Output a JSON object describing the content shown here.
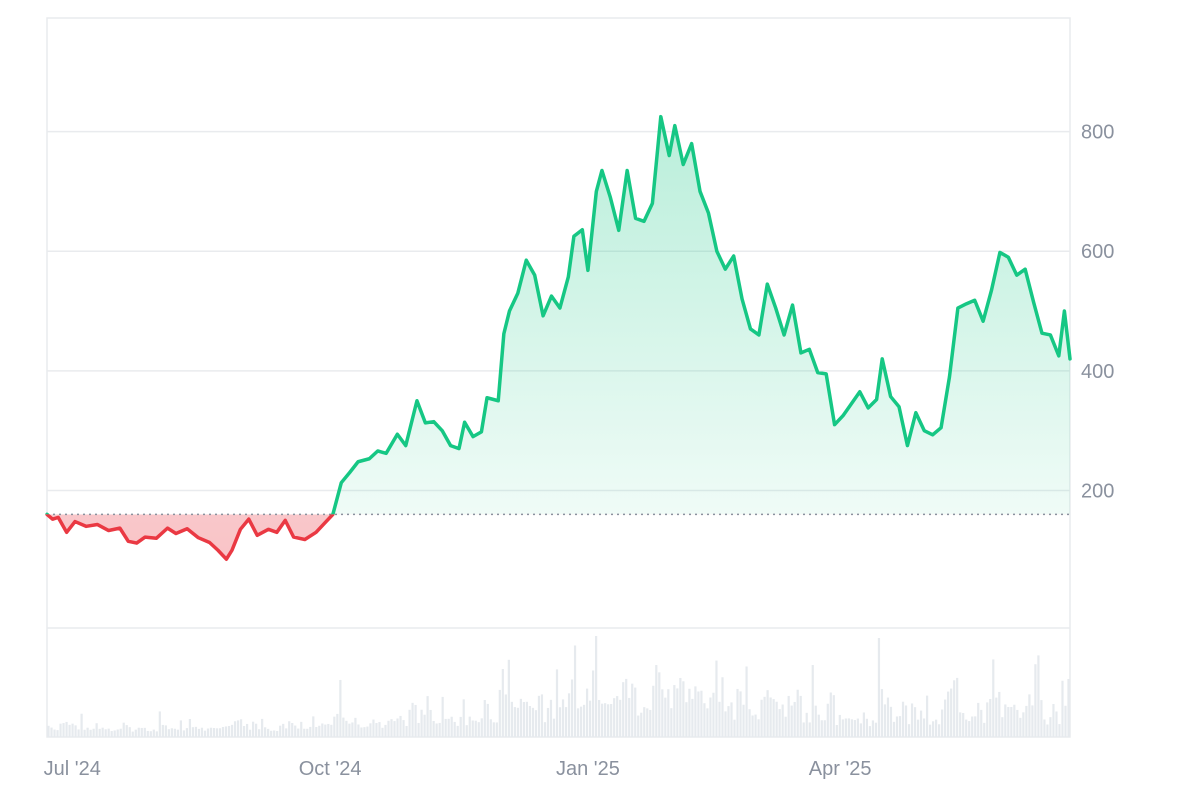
{
  "chart_data": {
    "type": "area",
    "baseline": 160,
    "ylim": [
      -30,
      990
    ],
    "y_ticks": [
      "800",
      "600",
      "400",
      "200"
    ],
    "x_tick_labels": [
      "Jul '24",
      "Oct '24",
      "Jan '25",
      "Apr '25"
    ],
    "x_tick_dates": [
      "2024-07-01",
      "2024-10-01",
      "2025-01-01",
      "2025-04-01"
    ],
    "x_range": [
      "2024-06-22",
      "2025-06-22"
    ],
    "grid": true,
    "colors": {
      "up_line": "#16c784",
      "down_line": "#ea3943",
      "up_fill": "#16c784",
      "down_fill": "#ea3943",
      "volume": "#e6eaee",
      "grid": "#e9ebee",
      "baseline": "#8a919e"
    },
    "series": [
      {
        "points": [
          [
            "2024-06-22",
            160
          ],
          [
            "2024-06-24",
            152
          ],
          [
            "2024-06-26",
            155
          ],
          [
            "2024-06-29",
            130
          ],
          [
            "2024-07-02",
            148
          ],
          [
            "2024-07-06",
            140
          ],
          [
            "2024-07-10",
            143
          ],
          [
            "2024-07-14",
            133
          ],
          [
            "2024-07-18",
            137
          ],
          [
            "2024-07-21",
            115
          ],
          [
            "2024-07-24",
            112
          ],
          [
            "2024-07-27",
            122
          ],
          [
            "2024-07-31",
            120
          ],
          [
            "2024-08-04",
            137
          ],
          [
            "2024-08-07",
            128
          ],
          [
            "2024-08-11",
            136
          ],
          [
            "2024-08-15",
            121
          ],
          [
            "2024-08-19",
            113
          ],
          [
            "2024-08-22",
            100
          ],
          [
            "2024-08-25",
            85
          ],
          [
            "2024-08-27",
            100
          ],
          [
            "2024-08-30",
            135
          ],
          [
            "2024-09-02",
            152
          ],
          [
            "2024-09-05",
            125
          ],
          [
            "2024-09-09",
            135
          ],
          [
            "2024-09-12",
            130
          ],
          [
            "2024-09-15",
            150
          ],
          [
            "2024-09-18",
            122
          ],
          [
            "2024-09-22",
            118
          ],
          [
            "2024-09-26",
            130
          ],
          [
            "2024-09-29",
            145
          ],
          [
            "2024-10-02",
            160
          ],
          [
            "2024-10-05",
            213
          ],
          [
            "2024-10-08",
            230
          ],
          [
            "2024-10-11",
            248
          ],
          [
            "2024-10-15",
            253
          ],
          [
            "2024-10-18",
            266
          ],
          [
            "2024-10-21",
            262
          ],
          [
            "2024-10-25",
            294
          ],
          [
            "2024-10-28",
            275
          ],
          [
            "2024-11-01",
            350
          ],
          [
            "2024-11-04",
            313
          ],
          [
            "2024-11-07",
            315
          ],
          [
            "2024-11-10",
            300
          ],
          [
            "2024-11-13",
            275
          ],
          [
            "2024-11-16",
            270
          ],
          [
            "2024-11-18",
            314
          ],
          [
            "2024-11-21",
            290
          ],
          [
            "2024-11-24",
            298
          ],
          [
            "2024-11-26",
            355
          ],
          [
            "2024-11-30",
            350
          ],
          [
            "2024-12-02",
            462
          ],
          [
            "2024-12-04",
            500
          ],
          [
            "2024-12-07",
            530
          ],
          [
            "2024-12-10",
            585
          ],
          [
            "2024-12-13",
            560
          ],
          [
            "2024-12-16",
            492
          ],
          [
            "2024-12-19",
            525
          ],
          [
            "2024-12-22",
            505
          ],
          [
            "2024-12-25",
            557
          ],
          [
            "2024-12-27",
            625
          ],
          [
            "2024-12-30",
            636
          ],
          [
            "2025-01-01",
            568
          ],
          [
            "2025-01-04",
            700
          ],
          [
            "2025-01-06",
            735
          ],
          [
            "2025-01-09",
            690
          ],
          [
            "2025-01-12",
            635
          ],
          [
            "2025-01-15",
            735
          ],
          [
            "2025-01-18",
            655
          ],
          [
            "2025-01-21",
            650
          ],
          [
            "2025-01-24",
            680
          ],
          [
            "2025-01-27",
            825
          ],
          [
            "2025-01-30",
            760
          ],
          [
            "2025-02-01",
            810
          ],
          [
            "2025-02-04",
            745
          ],
          [
            "2025-02-07",
            780
          ],
          [
            "2025-02-10",
            700
          ],
          [
            "2025-02-13",
            664
          ],
          [
            "2025-02-16",
            600
          ],
          [
            "2025-02-19",
            570
          ],
          [
            "2025-02-22",
            592
          ],
          [
            "2025-02-25",
            520
          ],
          [
            "2025-02-28",
            470
          ],
          [
            "2025-03-03",
            460
          ],
          [
            "2025-03-06",
            545
          ],
          [
            "2025-03-09",
            505
          ],
          [
            "2025-03-12",
            460
          ],
          [
            "2025-03-15",
            510
          ],
          [
            "2025-03-18",
            430
          ],
          [
            "2025-03-21",
            436
          ],
          [
            "2025-03-24",
            397
          ],
          [
            "2025-03-27",
            395
          ],
          [
            "2025-03-30",
            310
          ],
          [
            "2025-04-02",
            325
          ],
          [
            "2025-04-05",
            345
          ],
          [
            "2025-04-08",
            365
          ],
          [
            "2025-04-11",
            338
          ],
          [
            "2025-04-14",
            352
          ],
          [
            "2025-04-16",
            420
          ],
          [
            "2025-04-19",
            357
          ],
          [
            "2025-04-22",
            340
          ],
          [
            "2025-04-25",
            275
          ],
          [
            "2025-04-28",
            330
          ],
          [
            "2025-05-01",
            300
          ],
          [
            "2025-05-04",
            293
          ],
          [
            "2025-05-07",
            305
          ],
          [
            "2025-05-10",
            390
          ],
          [
            "2025-05-13",
            505
          ],
          [
            "2025-05-16",
            512
          ],
          [
            "2025-05-19",
            518
          ],
          [
            "2025-05-22",
            483
          ],
          [
            "2025-05-25",
            535
          ],
          [
            "2025-05-28",
            598
          ],
          [
            "2025-05-31",
            590
          ],
          [
            "2025-06-03",
            560
          ],
          [
            "2025-06-06",
            570
          ],
          [
            "2025-06-09",
            515
          ],
          [
            "2025-06-12",
            463
          ],
          [
            "2025-06-15",
            460
          ],
          [
            "2025-06-18",
            425
          ],
          [
            "2025-06-20",
            500
          ],
          [
            "2025-06-22",
            420
          ]
        ]
      }
    ]
  }
}
